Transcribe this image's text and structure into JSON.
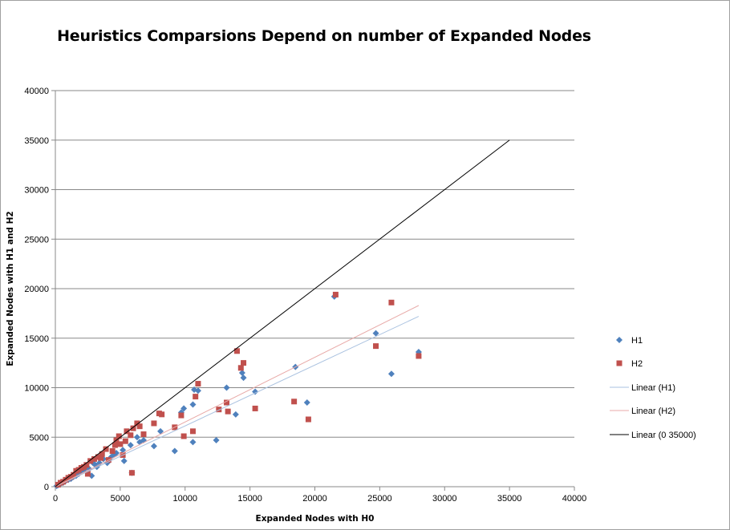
{
  "chart_data": {
    "type": "scatter",
    "title": "Heuristics Comparsions Depend on number of Expanded Nodes",
    "xlabel": "Expanded  Nodes with H0",
    "ylabel": "Expanded  Nodes with H1 and H2",
    "xlim": [
      0,
      40000
    ],
    "ylim": [
      0,
      40000
    ],
    "x_ticks": [
      0,
      5000,
      10000,
      15000,
      20000,
      25000,
      30000,
      35000,
      40000
    ],
    "y_ticks": [
      0,
      5000,
      10000,
      15000,
      20000,
      25000,
      30000,
      35000,
      40000
    ],
    "grid": "horizontal major gridlines",
    "legend_position": "right",
    "series": [
      {
        "name": "H1",
        "marker": "diamond",
        "color": "#4f81bd",
        "points": [
          [
            21500,
            19200
          ],
          [
            24700,
            15500
          ],
          [
            28000,
            13600
          ],
          [
            25900,
            11400
          ],
          [
            18500,
            12100
          ],
          [
            19400,
            8500
          ],
          [
            15400,
            9600
          ],
          [
            14500,
            11000
          ],
          [
            14400,
            11500
          ],
          [
            13200,
            10000
          ],
          [
            13900,
            7300
          ],
          [
            12400,
            4700
          ],
          [
            11000,
            9700
          ],
          [
            10700,
            9800
          ],
          [
            10600,
            8300
          ],
          [
            10600,
            4500
          ],
          [
            9900,
            7900
          ],
          [
            9700,
            7500
          ],
          [
            9200,
            3600
          ],
          [
            8100,
            5600
          ],
          [
            7600,
            4100
          ],
          [
            6800,
            4700
          ],
          [
            6500,
            4500
          ],
          [
            6300,
            5000
          ],
          [
            5900,
            1400
          ],
          [
            5800,
            4200
          ],
          [
            5300,
            2600
          ],
          [
            5200,
            3700
          ],
          [
            4700,
            3400
          ],
          [
            4300,
            3000
          ],
          [
            4000,
            2400
          ],
          [
            3700,
            2800
          ],
          [
            3400,
            2400
          ],
          [
            3200,
            2000
          ],
          [
            2900,
            2400
          ],
          [
            2800,
            1100
          ],
          [
            2600,
            1800
          ],
          [
            2400,
            2000
          ],
          [
            2200,
            1700
          ],
          [
            2000,
            1600
          ],
          [
            1800,
            1300
          ],
          [
            1600,
            1100
          ],
          [
            1400,
            1000
          ],
          [
            1200,
            800
          ],
          [
            1000,
            700
          ],
          [
            800,
            600
          ],
          [
            600,
            400
          ],
          [
            400,
            300
          ],
          [
            200,
            150
          ],
          [
            100,
            80
          ],
          [
            3000,
            2300
          ],
          [
            4500,
            3200
          ]
        ]
      },
      {
        "name": "H2",
        "marker": "square",
        "color": "#c0504d",
        "points": [
          [
            21600,
            19400
          ],
          [
            25900,
            18600
          ],
          [
            24700,
            14200
          ],
          [
            28000,
            13200
          ],
          [
            14000,
            13700
          ],
          [
            14500,
            12500
          ],
          [
            14300,
            12000
          ],
          [
            11000,
            10400
          ],
          [
            10800,
            9100
          ],
          [
            13200,
            8500
          ],
          [
            18400,
            8600
          ],
          [
            15400,
            7900
          ],
          [
            12600,
            7800
          ],
          [
            13300,
            7600
          ],
          [
            8200,
            7300
          ],
          [
            8000,
            7400
          ],
          [
            9700,
            7200
          ],
          [
            7600,
            6400
          ],
          [
            19500,
            6800
          ],
          [
            10600,
            5600
          ],
          [
            9900,
            5100
          ],
          [
            9200,
            6000
          ],
          [
            6800,
            5300
          ],
          [
            6500,
            6100
          ],
          [
            6300,
            6400
          ],
          [
            6000,
            5900
          ],
          [
            5800,
            5200
          ],
          [
            5500,
            5600
          ],
          [
            5400,
            4600
          ],
          [
            5200,
            3200
          ],
          [
            4900,
            5100
          ],
          [
            4700,
            4700
          ],
          [
            4600,
            4200
          ],
          [
            4400,
            3600
          ],
          [
            4100,
            2700
          ],
          [
            3900,
            3800
          ],
          [
            3600,
            3300
          ],
          [
            3300,
            3000
          ],
          [
            3000,
            2800
          ],
          [
            2700,
            2600
          ],
          [
            2500,
            1300
          ],
          [
            2400,
            2200
          ],
          [
            2200,
            2000
          ],
          [
            2000,
            1900
          ],
          [
            1800,
            1700
          ],
          [
            1600,
            1600
          ],
          [
            1400,
            1200
          ],
          [
            1200,
            1000
          ],
          [
            1000,
            900
          ],
          [
            800,
            700
          ],
          [
            600,
            500
          ],
          [
            400,
            400
          ],
          [
            200,
            200
          ],
          [
            5900,
            1400
          ],
          [
            3500,
            2900
          ],
          [
            5000,
            4300
          ]
        ]
      }
    ],
    "trendlines": [
      {
        "name": "Linear (H1)",
        "color": "#aac2e0",
        "x": [
          0,
          28000
        ],
        "y": [
          0,
          17200
        ]
      },
      {
        "name": "Linear (H2)",
        "color": "#e8aaa8",
        "x": [
          0,
          28000
        ],
        "y": [
          0,
          18300
        ]
      },
      {
        "name": "Linear (0 35000)",
        "color": "#000000",
        "x": [
          0,
          35000
        ],
        "y": [
          0,
          35000
        ]
      }
    ]
  }
}
